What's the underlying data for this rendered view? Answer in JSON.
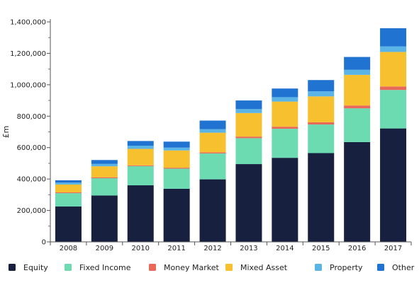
{
  "chart_data": {
    "type": "bar",
    "stacked": true,
    "title": "",
    "xlabel": "",
    "ylabel": "£m",
    "ylim": [
      0,
      1400000
    ],
    "yticks": [
      0,
      200000,
      400000,
      600000,
      800000,
      1000000,
      1200000,
      1400000
    ],
    "ytick_labels": [
      "0",
      "200,000",
      "400,000",
      "600,000",
      "800,000",
      "1,000,000",
      "1,200,000",
      "1,400,000"
    ],
    "categories": [
      "2008",
      "2009",
      "2010",
      "2011",
      "2012",
      "2013",
      "2014",
      "2015",
      "2016",
      "2017"
    ],
    "grid": false,
    "legend_position": "bottom",
    "series": [
      {
        "name": "Equity",
        "color": "#17213f",
        "values": [
          225000,
          295000,
          360000,
          338000,
          398000,
          495000,
          535000,
          565000,
          635000,
          722000
        ]
      },
      {
        "name": "Fixed Income",
        "color": "#6cdbb2",
        "values": [
          85000,
          110000,
          122000,
          128000,
          165000,
          165000,
          185000,
          182000,
          215000,
          245000
        ]
      },
      {
        "name": "Money Market",
        "color": "#e8685a",
        "values": [
          5000,
          6000,
          5000,
          6000,
          7000,
          10000,
          13000,
          14000,
          18000,
          22000
        ]
      },
      {
        "name": "Mixed Asset",
        "color": "#f6c02f",
        "values": [
          50000,
          70000,
          105000,
          110000,
          125000,
          150000,
          160000,
          165000,
          195000,
          220000
        ]
      },
      {
        "name": "Property",
        "color": "#5ab4e5",
        "values": [
          12000,
          15000,
          20000,
          18000,
          22000,
          25000,
          28000,
          32000,
          32000,
          35000
        ]
      },
      {
        "name": "Other",
        "color": "#2173d2",
        "values": [
          15000,
          25000,
          30000,
          38000,
          55000,
          55000,
          55000,
          72000,
          82000,
          116000
        ]
      }
    ]
  }
}
